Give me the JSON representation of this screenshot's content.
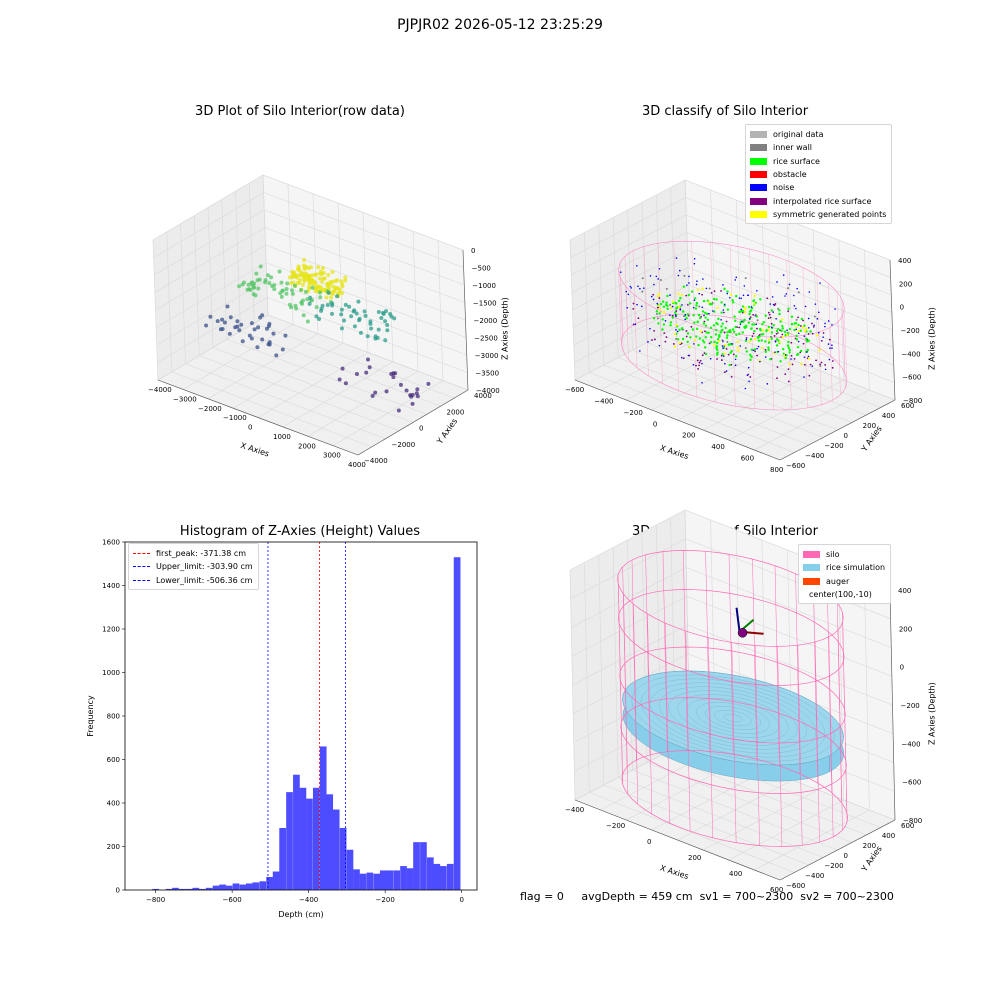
{
  "suptitle": "PJPJR02 2026-05-12 23:25:29",
  "status_line": {
    "flag": "flag = 0",
    "avg_depth": "avgDepth = 459 cm",
    "sv1": "sv1 = 700~2300",
    "sv2": "sv2 = 700~2300"
  },
  "chart_data": [
    {
      "type": "scatter",
      "title": "3D Plot of Silo Interior(row data)",
      "xlabel": "X Axies",
      "ylabel": "Y Axies",
      "zlabel": "Z Axies (Depth)",
      "xticks": [
        "−4000",
        "−3000",
        "−2000",
        "−1000",
        "0",
        "1000",
        "2000",
        "3000",
        "4000"
      ],
      "yticks": [
        "−4000",
        "−2000",
        "0",
        "2000",
        "4000"
      ],
      "zticks": [
        "0",
        "−500",
        "−1000",
        "−1500",
        "−2000",
        "−2500",
        "−3000",
        "−3500",
        "−4000"
      ],
      "xlim": [
        -4000,
        4000
      ],
      "ylim": [
        -4000,
        4000
      ],
      "zlim": [
        -4000,
        0
      ],
      "colormap": "viridis by depth",
      "point_groups": [
        {
          "label": "",
          "color": "#e5e41a",
          "x": 200,
          "y": 200,
          "z": -1000,
          "count": 120
        },
        {
          "label": "",
          "color": "#55c568",
          "x": -1200,
          "y": 300,
          "z": -1700,
          "count": 60
        },
        {
          "label": "",
          "color": "#2a9c8a",
          "x": 800,
          "y": 1800,
          "z": -2200,
          "count": 50
        },
        {
          "label": "",
          "color": "#3b528b",
          "x": -2200,
          "y": -500,
          "z": -2900,
          "count": 35
        },
        {
          "label": "",
          "color": "#472d7b",
          "x": 2500,
          "y": 800,
          "z": -3500,
          "count": 25
        }
      ]
    },
    {
      "type": "scatter",
      "title": "3D classify of Silo Interior",
      "xlabel": "X Axies",
      "ylabel": "Y Axies",
      "zlabel": "Z Axies (Depth)",
      "xticks": [
        "−600",
        "−400",
        "−200",
        "0",
        "200",
        "400",
        "600",
        "800"
      ],
      "yticks": [
        "−600",
        "−400",
        "−200",
        "0",
        "200",
        "400",
        "600"
      ],
      "zticks": [
        "400",
        "200",
        "0",
        "−200",
        "−400",
        "−600",
        "−800"
      ],
      "legend": [
        {
          "label": "original data",
          "color": "#b3b3b3"
        },
        {
          "label": "inner wall",
          "color": "#808080"
        },
        {
          "label": "rice surface",
          "color": "#00ff00"
        },
        {
          "label": "obstacle",
          "color": "#ff0000"
        },
        {
          "label": "noise",
          "color": "#0000ff"
        },
        {
          "label": "interpolated rice surface",
          "color": "#800080"
        },
        {
          "label": "symmetric generated points",
          "color": "#ffff00"
        }
      ],
      "legend_loc": "upper right"
    },
    {
      "type": "bar",
      "title": "Histogram of Z-Axies (Height) Values",
      "xlabel": "Depth (cm)",
      "ylabel": "Frequency",
      "xlim": [
        -880,
        40
      ],
      "ylim": [
        0,
        1600
      ],
      "xticks": [
        -800,
        -600,
        -400,
        -200,
        0
      ],
      "yticks": [
        0,
        200,
        400,
        600,
        800,
        1000,
        1200,
        1400,
        1600
      ],
      "bin_width": 17.5,
      "bar_color": "#4d4dff",
      "bins": [
        {
          "x": -800,
          "count": 5
        },
        {
          "x": -782,
          "count": 0
        },
        {
          "x": -765,
          "count": 5
        },
        {
          "x": -748,
          "count": 10
        },
        {
          "x": -730,
          "count": 5
        },
        {
          "x": -712,
          "count": 5
        },
        {
          "x": -695,
          "count": 10
        },
        {
          "x": -678,
          "count": 5
        },
        {
          "x": -660,
          "count": 10
        },
        {
          "x": -642,
          "count": 20
        },
        {
          "x": -625,
          "count": 25
        },
        {
          "x": -608,
          "count": 20
        },
        {
          "x": -590,
          "count": 30
        },
        {
          "x": -572,
          "count": 25
        },
        {
          "x": -555,
          "count": 30
        },
        {
          "x": -538,
          "count": 35
        },
        {
          "x": -520,
          "count": 40
        },
        {
          "x": -502,
          "count": 60
        },
        {
          "x": -485,
          "count": 85
        },
        {
          "x": -468,
          "count": 285
        },
        {
          "x": -450,
          "count": 450
        },
        {
          "x": -432,
          "count": 530
        },
        {
          "x": -415,
          "count": 470
        },
        {
          "x": -398,
          "count": 420
        },
        {
          "x": -380,
          "count": 470
        },
        {
          "x": -362,
          "count": 660
        },
        {
          "x": -345,
          "count": 440
        },
        {
          "x": -328,
          "count": 370
        },
        {
          "x": -310,
          "count": 285
        },
        {
          "x": -292,
          "count": 185
        },
        {
          "x": -275,
          "count": 95
        },
        {
          "x": -258,
          "count": 75
        },
        {
          "x": -240,
          "count": 80
        },
        {
          "x": -222,
          "count": 75
        },
        {
          "x": -205,
          "count": 90
        },
        {
          "x": -188,
          "count": 90
        },
        {
          "x": -170,
          "count": 90
        },
        {
          "x": -152,
          "count": 110
        },
        {
          "x": -135,
          "count": 100
        },
        {
          "x": -118,
          "count": 220
        },
        {
          "x": -100,
          "count": 220
        },
        {
          "x": -82,
          "count": 150
        },
        {
          "x": -65,
          "count": 120
        },
        {
          "x": -48,
          "count": 110
        },
        {
          "x": -30,
          "count": 120
        },
        {
          "x": -12,
          "count": 1530
        }
      ],
      "vlines": [
        {
          "label": "first_peak: -371.38 cm",
          "x": -371.38,
          "color": "#ff0000"
        },
        {
          "label": "Upper_limit: -303.90 cm",
          "x": -303.9,
          "color": "#0000ff"
        },
        {
          "label": "Lower_limit: -506.36 cm",
          "x": -506.36,
          "color": "#0000ff"
        }
      ],
      "legend_loc": "upper left"
    },
    {
      "type": "surface",
      "title": "3D simulation of Silo Interior",
      "xlabel": "X Axies",
      "ylabel": "Y Axies",
      "zlabel": "Z Axies (Depth)",
      "xticks": [
        "−400",
        "−200",
        "0",
        "200",
        "400",
        "600"
      ],
      "yticks": [
        "−600",
        "−400",
        "−200",
        "0",
        "200",
        "400",
        "600"
      ],
      "zticks": [
        "400",
        "200",
        "0",
        "−200",
        "−400",
        "−600",
        "−800"
      ],
      "legend": [
        {
          "label": "silo",
          "color": "#ff69b4"
        },
        {
          "label": "rice simulation",
          "color": "#87ceeb"
        },
        {
          "label": "auger",
          "color": "#ff4500"
        },
        {
          "label": "center(100,-10)",
          "color": ""
        }
      ],
      "legend_loc": "upper right"
    }
  ]
}
